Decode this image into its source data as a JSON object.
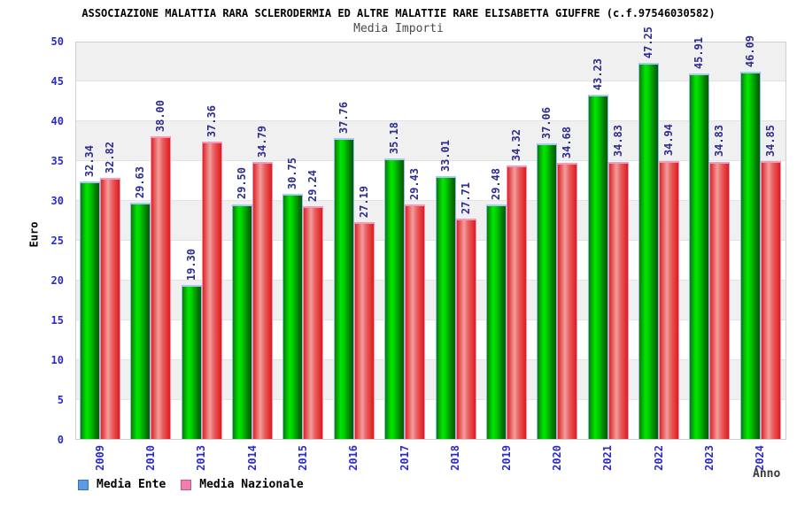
{
  "header": {
    "title": "ASSOCIAZIONE MALATTIA RARA SCLERODERMIA ED ALTRE MALATTIE RARE ELISABETTA GIUFFRE (c.f.97546030582)",
    "subtitle": "Media Importi"
  },
  "chart_data": {
    "type": "bar",
    "title": "ASSOCIAZIONE MALATTIA RARA SCLERODERMIA ED ALTRE MALATTIE RARE ELISABETTA GIUFFRE (c.f.97546030582)",
    "subtitle": "Media Importi",
    "xlabel": "Anno",
    "ylabel": "Euro",
    "ylim": [
      0,
      50
    ],
    "yticks": [
      0,
      5,
      10,
      15,
      20,
      25,
      30,
      35,
      40,
      45,
      50
    ],
    "grid": "horizontal-bands-alternating",
    "legend_position": "bottom-left",
    "categories": [
      "2009",
      "2010",
      "2013",
      "2014",
      "2015",
      "2016",
      "2017",
      "2018",
      "2019",
      "2020",
      "2021",
      "2022",
      "2023",
      "2024"
    ],
    "series": [
      {
        "name": "Media Ente",
        "bar_color": "#00c800",
        "legend_swatch_color": "#5c9ce6",
        "values": [
          32.34,
          29.63,
          19.3,
          29.5,
          30.75,
          37.76,
          35.18,
          33.01,
          29.48,
          37.06,
          43.23,
          47.25,
          45.91,
          46.09
        ]
      },
      {
        "name": "Media Nazionale",
        "bar_color": "#dd1b1b",
        "legend_swatch_color": "#ef7fae",
        "values": [
          32.82,
          38.0,
          37.36,
          34.79,
          29.24,
          27.19,
          29.43,
          27.71,
          34.32,
          34.68,
          34.83,
          34.94,
          34.83,
          34.85
        ]
      }
    ],
    "colors": {
      "tick_label": "#2a2ad0",
      "value_label": "#2d2d8f",
      "band_gray": "#f0f0f0",
      "band_white": "#ffffff"
    }
  }
}
